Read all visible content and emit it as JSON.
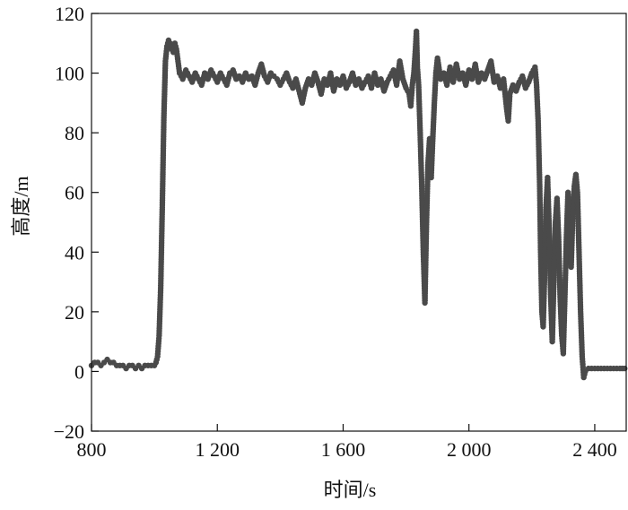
{
  "chart_data": {
    "type": "scatter",
    "title": "",
    "xlabel": "时间/s",
    "ylabel": "高度/m",
    "xlim": [
      800,
      2500
    ],
    "ylim": [
      -20,
      120
    ],
    "x_ticks": [
      800,
      1200,
      1600,
      2000,
      2400
    ],
    "x_tick_labels": [
      "800",
      "1 200",
      "1 600",
      "2 000",
      "2 400"
    ],
    "y_ticks": [
      -20,
      0,
      20,
      40,
      60,
      80,
      100,
      120
    ],
    "y_tick_labels": [
      "−20",
      "0",
      "20",
      "40",
      "60",
      "80",
      "100",
      "120"
    ],
    "grid": false,
    "marker_color": "#4a4a4a",
    "series": [
      {
        "points": [
          [
            800,
            2
          ],
          [
            810,
            3
          ],
          [
            820,
            3
          ],
          [
            830,
            2
          ],
          [
            840,
            3
          ],
          [
            850,
            4
          ],
          [
            860,
            3
          ],
          [
            870,
            3
          ],
          [
            880,
            2
          ],
          [
            890,
            2
          ],
          [
            900,
            2
          ],
          [
            910,
            1
          ],
          [
            920,
            2
          ],
          [
            930,
            2
          ],
          [
            940,
            1
          ],
          [
            950,
            2
          ],
          [
            960,
            1
          ],
          [
            970,
            2
          ],
          [
            980,
            2
          ],
          [
            990,
            2
          ],
          [
            1000,
            2
          ],
          [
            1005,
            3
          ],
          [
            1010,
            5
          ],
          [
            1015,
            12
          ],
          [
            1020,
            28
          ],
          [
            1025,
            55
          ],
          [
            1030,
            85
          ],
          [
            1035,
            104
          ],
          [
            1040,
            109
          ],
          [
            1045,
            111
          ],
          [
            1050,
            110
          ],
          [
            1055,
            108
          ],
          [
            1060,
            107
          ],
          [
            1065,
            110
          ],
          [
            1070,
            108
          ],
          [
            1075,
            104
          ],
          [
            1080,
            100
          ],
          [
            1090,
            98
          ],
          [
            1100,
            101
          ],
          [
            1110,
            99
          ],
          [
            1120,
            97
          ],
          [
            1130,
            100
          ],
          [
            1140,
            98
          ],
          [
            1150,
            96
          ],
          [
            1160,
            100
          ],
          [
            1170,
            98
          ],
          [
            1180,
            101
          ],
          [
            1190,
            99
          ],
          [
            1200,
            97
          ],
          [
            1210,
            100
          ],
          [
            1220,
            98
          ],
          [
            1230,
            96
          ],
          [
            1240,
            100
          ],
          [
            1250,
            101
          ],
          [
            1260,
            98
          ],
          [
            1270,
            99
          ],
          [
            1280,
            97
          ],
          [
            1290,
            100
          ],
          [
            1300,
            98
          ],
          [
            1310,
            99
          ],
          [
            1320,
            96
          ],
          [
            1330,
            100
          ],
          [
            1340,
            103
          ],
          [
            1350,
            99
          ],
          [
            1360,
            97
          ],
          [
            1370,
            100
          ],
          [
            1380,
            99
          ],
          [
            1390,
            98
          ],
          [
            1400,
            96
          ],
          [
            1410,
            98
          ],
          [
            1420,
            100
          ],
          [
            1430,
            97
          ],
          [
            1440,
            95
          ],
          [
            1450,
            98
          ],
          [
            1460,
            94
          ],
          [
            1470,
            90
          ],
          [
            1480,
            95
          ],
          [
            1490,
            98
          ],
          [
            1500,
            96
          ],
          [
            1510,
            100
          ],
          [
            1520,
            97
          ],
          [
            1530,
            93
          ],
          [
            1540,
            98
          ],
          [
            1550,
            96
          ],
          [
            1560,
            100
          ],
          [
            1570,
            94
          ],
          [
            1580,
            98
          ],
          [
            1590,
            96
          ],
          [
            1600,
            99
          ],
          [
            1610,
            95
          ],
          [
            1620,
            97
          ],
          [
            1630,
            100
          ],
          [
            1640,
            96
          ],
          [
            1650,
            98
          ],
          [
            1660,
            95
          ],
          [
            1670,
            97
          ],
          [
            1680,
            99
          ],
          [
            1690,
            95
          ],
          [
            1700,
            100
          ],
          [
            1710,
            96
          ],
          [
            1720,
            98
          ],
          [
            1730,
            94
          ],
          [
            1740,
            97
          ],
          [
            1750,
            99
          ],
          [
            1760,
            101
          ],
          [
            1770,
            96
          ],
          [
            1780,
            104
          ],
          [
            1790,
            98
          ],
          [
            1800,
            95
          ],
          [
            1810,
            93
          ],
          [
            1815,
            89
          ],
          [
            1820,
            96
          ],
          [
            1825,
            100
          ],
          [
            1830,
            108
          ],
          [
            1833,
            114
          ],
          [
            1836,
            102
          ],
          [
            1840,
            96
          ],
          [
            1845,
            80
          ],
          [
            1850,
            62
          ],
          [
            1855,
            40
          ],
          [
            1860,
            23
          ],
          [
            1865,
            50
          ],
          [
            1870,
            70
          ],
          [
            1875,
            78
          ],
          [
            1880,
            65
          ],
          [
            1885,
            78
          ],
          [
            1890,
            90
          ],
          [
            1895,
            100
          ],
          [
            1900,
            105
          ],
          [
            1910,
            98
          ],
          [
            1920,
            100
          ],
          [
            1930,
            96
          ],
          [
            1940,
            102
          ],
          [
            1950,
            97
          ],
          [
            1960,
            103
          ],
          [
            1970,
            98
          ],
          [
            1980,
            100
          ],
          [
            1990,
            96
          ],
          [
            2000,
            101
          ],
          [
            2010,
            98
          ],
          [
            2020,
            103
          ],
          [
            2030,
            97
          ],
          [
            2040,
            100
          ],
          [
            2050,
            98
          ],
          [
            2060,
            101
          ],
          [
            2070,
            104
          ],
          [
            2080,
            97
          ],
          [
            2090,
            99
          ],
          [
            2100,
            95
          ],
          [
            2110,
            98
          ],
          [
            2120,
            88
          ],
          [
            2125,
            84
          ],
          [
            2130,
            93
          ],
          [
            2140,
            96
          ],
          [
            2150,
            94
          ],
          [
            2160,
            97
          ],
          [
            2170,
            99
          ],
          [
            2180,
            95
          ],
          [
            2190,
            97
          ],
          [
            2200,
            100
          ],
          [
            2210,
            102
          ],
          [
            2215,
            96
          ],
          [
            2220,
            84
          ],
          [
            2225,
            62
          ],
          [
            2228,
            40
          ],
          [
            2232,
            20
          ],
          [
            2236,
            15
          ],
          [
            2240,
            30
          ],
          [
            2245,
            55
          ],
          [
            2250,
            65
          ],
          [
            2255,
            48
          ],
          [
            2260,
            25
          ],
          [
            2265,
            10
          ],
          [
            2270,
            30
          ],
          [
            2275,
            50
          ],
          [
            2280,
            58
          ],
          [
            2285,
            45
          ],
          [
            2290,
            25
          ],
          [
            2295,
            12
          ],
          [
            2300,
            6
          ],
          [
            2305,
            25
          ],
          [
            2310,
            45
          ],
          [
            2315,
            60
          ],
          [
            2320,
            50
          ],
          [
            2325,
            35
          ],
          [
            2330,
            52
          ],
          [
            2335,
            62
          ],
          [
            2340,
            66
          ],
          [
            2345,
            60
          ],
          [
            2350,
            40
          ],
          [
            2355,
            20
          ],
          [
            2360,
            5
          ],
          [
            2365,
            -2
          ],
          [
            2370,
            0
          ],
          [
            2380,
            1
          ],
          [
            2390,
            1
          ],
          [
            2400,
            1
          ],
          [
            2420,
            1
          ],
          [
            2440,
            1
          ],
          [
            2460,
            1
          ],
          [
            2480,
            1
          ],
          [
            2495,
            1
          ]
        ]
      }
    ]
  }
}
